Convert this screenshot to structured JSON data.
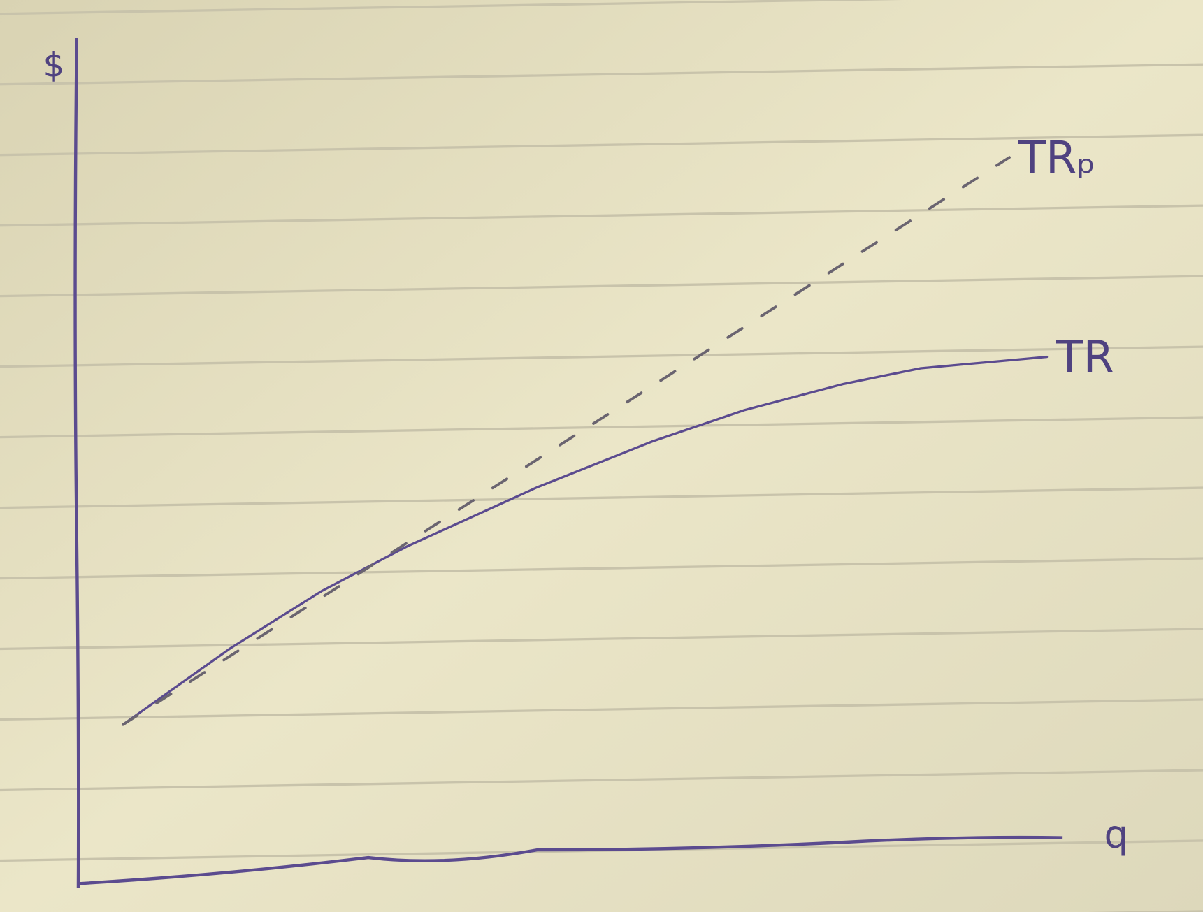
{
  "chart_data": {
    "type": "line",
    "y_label": "$",
    "x_label": "q",
    "xlim": [
      0,
      100
    ],
    "ylim": [
      0,
      100
    ],
    "series": [
      {
        "name": "TR",
        "color": "#5b4b8f",
        "style": "solid",
        "x": [
          4.7,
          15.6,
          24.9,
          33.5,
          46.7,
          58.4,
          67.7,
          77.8,
          85.6,
          98.4
        ],
        "values": [
          19.2,
          28.5,
          35.5,
          40.9,
          48.1,
          53.7,
          57.5,
          60.7,
          62.6,
          64.0
        ]
      },
      {
        "name": "TRₚ",
        "color": "#6a6470",
        "style": "dashed",
        "x": [
          4.7,
          94.6
        ],
        "values": [
          19.2,
          88.3
        ]
      }
    ]
  }
}
